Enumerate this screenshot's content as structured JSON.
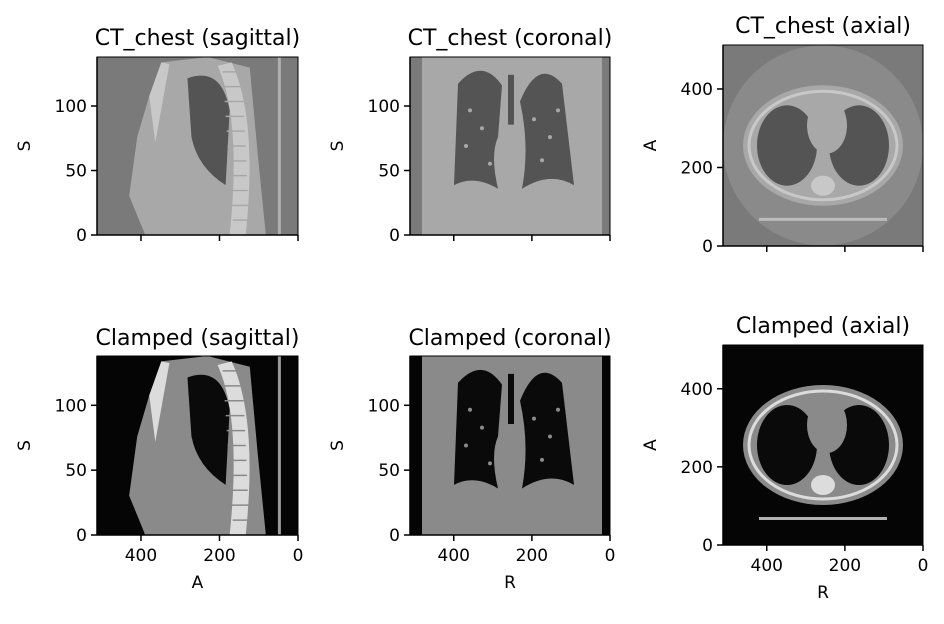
{
  "figure": {
    "panels": [
      {
        "id": "ct-sagittal",
        "title": "CT_chest (sagittal)",
        "view": "sagittal",
        "style": "ct",
        "ylabel": "S",
        "xlabel": "",
        "yticks": [
          "0",
          "50",
          "100"
        ],
        "xticks": [
          "",
          "",
          ""
        ],
        "xlim": [
          512,
          0
        ],
        "ylim": [
          0,
          138
        ]
      },
      {
        "id": "ct-coronal",
        "title": "CT_chest (coronal)",
        "view": "coronal",
        "style": "ct",
        "ylabel": "S",
        "xlabel": "",
        "yticks": [
          "0",
          "50",
          "100"
        ],
        "xticks": [
          "",
          "",
          ""
        ],
        "xlim": [
          512,
          0
        ],
        "ylim": [
          0,
          138
        ]
      },
      {
        "id": "ct-axial",
        "title": "CT_chest (axial)",
        "view": "axial",
        "style": "ct",
        "ylabel": "A",
        "xlabel": "",
        "yticks": [
          "0",
          "200",
          "400"
        ],
        "xticks": [
          "",
          "",
          ""
        ],
        "xlim": [
          512,
          0
        ],
        "ylim": [
          0,
          512
        ]
      },
      {
        "id": "clamped-sagittal",
        "title": "Clamped (sagittal)",
        "view": "sagittal",
        "style": "clamped",
        "ylabel": "S",
        "xlabel": "A",
        "yticks": [
          "0",
          "50",
          "100"
        ],
        "xticks": [
          "400",
          "200",
          "0"
        ],
        "xlim": [
          512,
          0
        ],
        "ylim": [
          0,
          138
        ]
      },
      {
        "id": "clamped-coronal",
        "title": "Clamped (coronal)",
        "view": "coronal",
        "style": "clamped",
        "ylabel": "S",
        "xlabel": "R",
        "yticks": [
          "0",
          "50",
          "100"
        ],
        "xticks": [
          "400",
          "200",
          "0"
        ],
        "xlim": [
          512,
          0
        ],
        "ylim": [
          0,
          138
        ]
      },
      {
        "id": "clamped-axial",
        "title": "Clamped (axial)",
        "view": "axial",
        "style": "clamped",
        "ylabel": "A",
        "xlabel": "R",
        "yticks": [
          "0",
          "200",
          "400"
        ],
        "xticks": [
          "400",
          "200",
          "0"
        ],
        "xlim": [
          512,
          0
        ],
        "ylim": [
          0,
          512
        ]
      }
    ]
  },
  "colors": {
    "ct_background": "#7a7a7a",
    "ct_tissue": "#a8a8a8",
    "ct_lung": "#545454",
    "ct_bone": "#c8c8c8",
    "clamped_background": "#050505",
    "clamped_tissue": "#8a8a8a",
    "clamped_lung": "#0a0a0a",
    "clamped_bone": "#dcdcdc",
    "axes_text": "#000000"
  }
}
